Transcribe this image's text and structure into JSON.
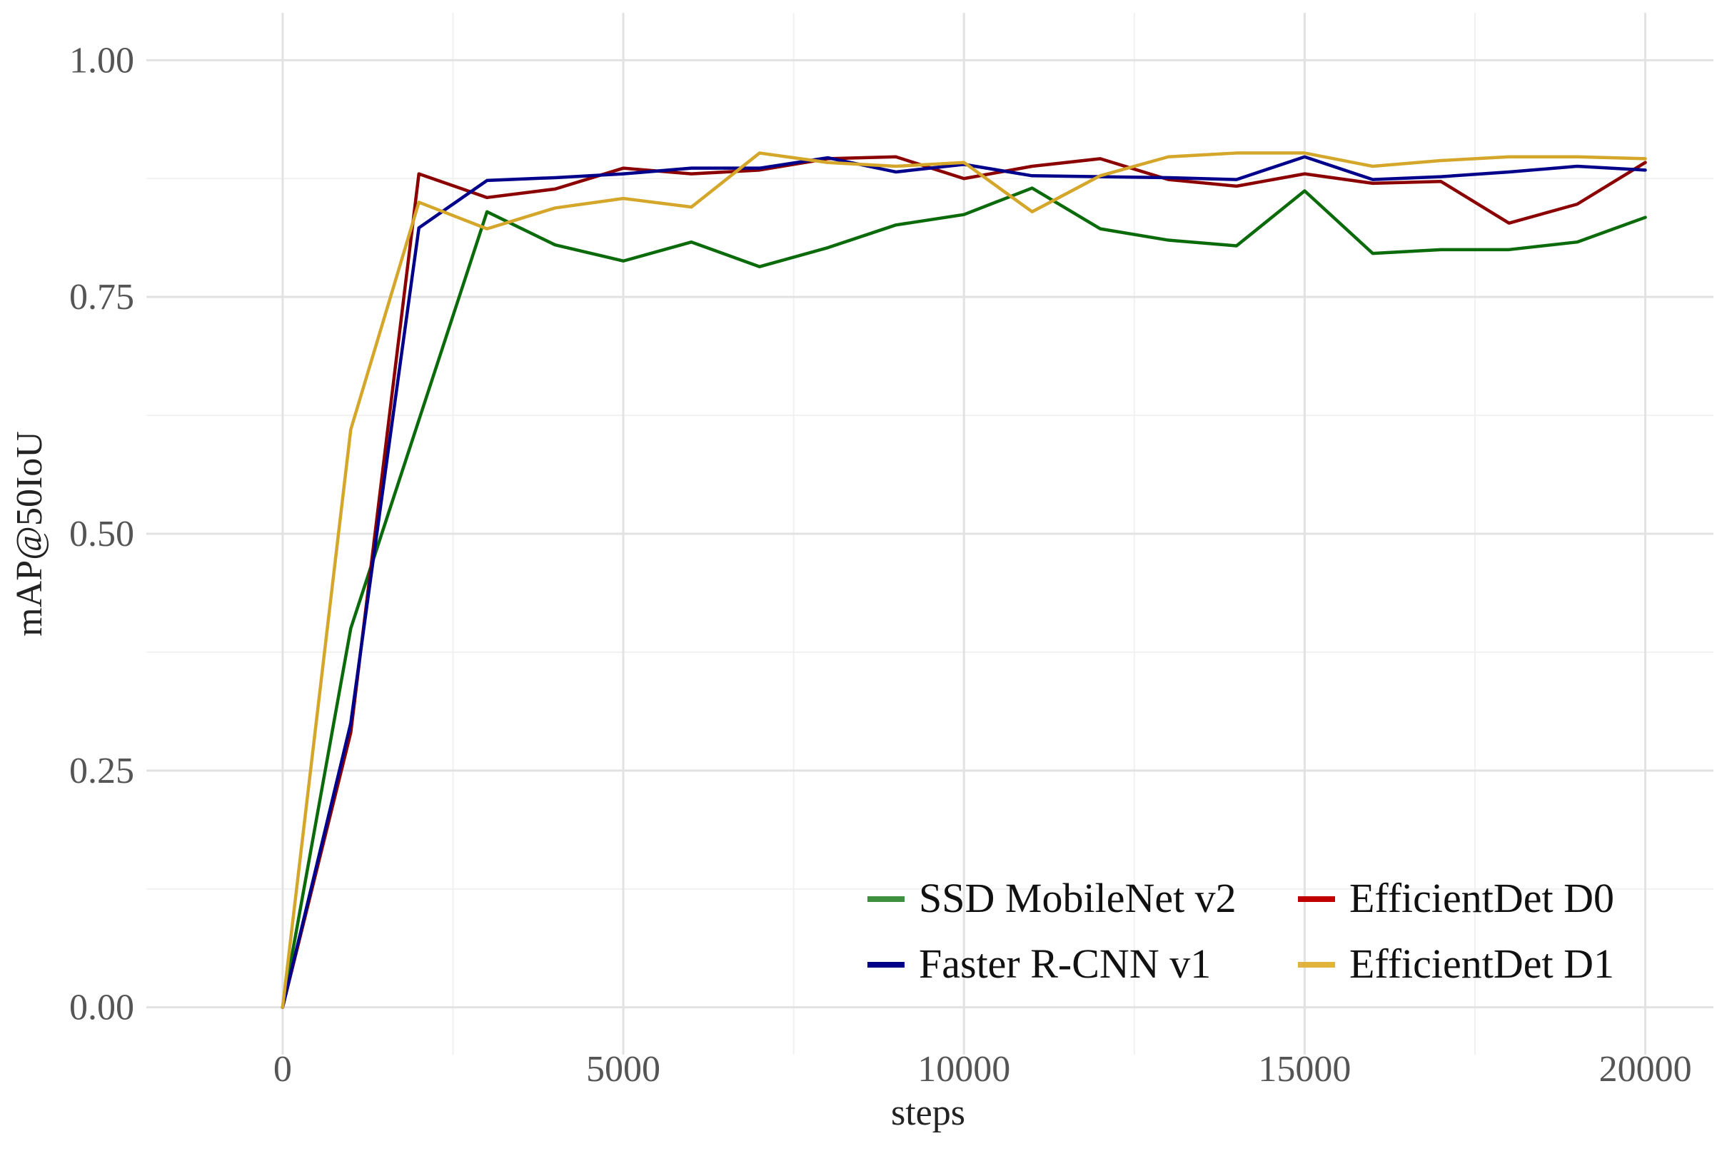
{
  "chart_data": {
    "type": "line",
    "title": "",
    "xlabel": "steps",
    "ylabel": "mAP@50IoU",
    "xlim": [
      -2000,
      21000
    ],
    "ylim": [
      -0.05,
      1.05
    ],
    "x_ticks": [
      0,
      5000,
      10000,
      15000,
      20000
    ],
    "x_tick_labels": [
      "0",
      "5000",
      "10000",
      "15000",
      "20000"
    ],
    "y_ticks": [
      0.0,
      0.25,
      0.5,
      0.75,
      1.0
    ],
    "y_tick_labels": [
      "0.00",
      "0.25",
      "0.50",
      "0.75",
      "1.00"
    ],
    "x_minor": [
      2500,
      7500,
      12500,
      17500
    ],
    "y_minor": [
      0.125,
      0.375,
      0.625,
      0.875
    ],
    "grid": true,
    "legend_position": "bottom-right",
    "x": [
      0,
      1000,
      2000,
      3000,
      4000,
      5000,
      6000,
      7000,
      8000,
      9000,
      10000,
      11000,
      12000,
      13000,
      14000,
      15000,
      16000,
      17000,
      18000,
      19000,
      20000
    ],
    "series": [
      {
        "name": "SSD MobileNet v2",
        "color": "#0b6b0b",
        "legend_color": "#3e8f3e",
        "values": [
          0.0,
          0.4,
          0.62,
          0.84,
          0.805,
          0.788,
          0.808,
          0.782,
          0.802,
          0.826,
          0.837,
          0.865,
          0.822,
          0.81,
          0.804,
          0.862,
          0.796,
          0.8,
          0.8,
          0.808,
          0.834
        ]
      },
      {
        "name": "EfficientDet D0",
        "color": "#8b0000",
        "legend_color": "#c00000",
        "values": [
          0.0,
          0.29,
          0.88,
          0.855,
          0.864,
          0.886,
          0.88,
          0.884,
          0.896,
          0.898,
          0.875,
          0.888,
          0.896,
          0.874,
          0.867,
          0.88,
          0.87,
          0.872,
          0.828,
          0.848,
          0.892
        ]
      },
      {
        "name": "Faster R-CNN v1",
        "color": "#00008b",
        "legend_color": "#00008b",
        "values": [
          0.0,
          0.3,
          0.823,
          0.873,
          0.876,
          0.88,
          0.886,
          0.886,
          0.897,
          0.882,
          0.89,
          0.878,
          0.877,
          0.876,
          0.874,
          0.898,
          0.874,
          0.877,
          0.882,
          0.888,
          0.884
        ]
      },
      {
        "name": "EfficientDet D1",
        "color": "#d4a62a",
        "legend_color": "#e0b43a",
        "values": [
          0.0,
          0.61,
          0.85,
          0.822,
          0.844,
          0.854,
          0.845,
          0.902,
          0.892,
          0.888,
          0.892,
          0.84,
          0.878,
          0.898,
          0.902,
          0.902,
          0.888,
          0.894,
          0.898,
          0.898,
          0.896
        ]
      }
    ],
    "legend_layout": [
      [
        "SSD MobileNet v2",
        "EfficientDet D0"
      ],
      [
        "Faster R-CNN v1",
        "EfficientDet D1"
      ]
    ]
  }
}
